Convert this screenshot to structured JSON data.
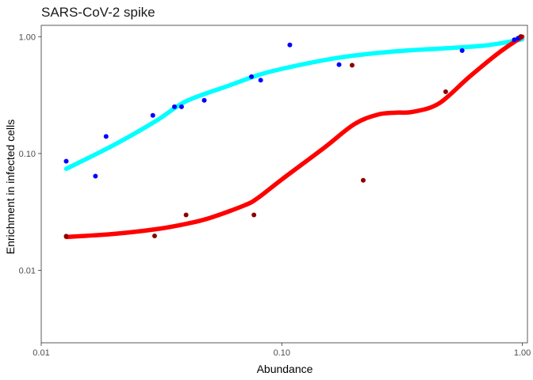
{
  "chart_data": {
    "type": "scatter",
    "title": "SARS-CoV-2 spike",
    "xlabel": "Abundance",
    "ylabel": "Enrichment in infected cells",
    "xscale": "log10",
    "yscale": "log10",
    "xlim": [
      0.01,
      1.05
    ],
    "ylim": [
      0.0024,
      1.25
    ],
    "xticks": [
      0.01,
      0.1,
      1
    ],
    "xtick_labels": [
      "0.01",
      "0.10",
      "1.00"
    ],
    "yticks": [
      0.01,
      0.1,
      1
    ],
    "ytick_labels": [
      "0.01",
      "0.10",
      "1.00"
    ],
    "grid": false,
    "legend": "none",
    "series": [
      {
        "color": "#0000ff",
        "points": [
          [
            0.0127,
            0.086
          ],
          [
            0.0168,
            0.064
          ],
          [
            0.0186,
            0.14
          ],
          [
            0.0291,
            0.212
          ],
          [
            0.0358,
            0.251
          ],
          [
            0.0383,
            0.251
          ],
          [
            0.0476,
            0.285
          ],
          [
            0.0748,
            0.454
          ],
          [
            0.0817,
            0.424
          ],
          [
            0.108,
            0.85
          ],
          [
            0.173,
            0.576
          ],
          [
            0.562,
            0.76
          ],
          [
            0.926,
            0.94
          ],
          [
            0.96,
            0.97
          ],
          [
            0.985,
            1.0
          ]
        ],
        "smooth_color": "#00ffff",
        "smooth": [
          [
            0.0127,
            0.074
          ],
          [
            0.02,
            0.118
          ],
          [
            0.03,
            0.19
          ],
          [
            0.04,
            0.28
          ],
          [
            0.06,
            0.38
          ],
          [
            0.08,
            0.47
          ],
          [
            0.1,
            0.53
          ],
          [
            0.15,
            0.63
          ],
          [
            0.2,
            0.69
          ],
          [
            0.3,
            0.75
          ],
          [
            0.5,
            0.8
          ],
          [
            0.7,
            0.84
          ],
          [
            0.9,
            0.91
          ],
          [
            1.0,
            0.95
          ]
        ]
      },
      {
        "color": "#8b0000",
        "points": [
          [
            0.0127,
            0.0196
          ],
          [
            0.0296,
            0.0197
          ],
          [
            0.04,
            0.0298
          ],
          [
            0.0766,
            0.0298
          ],
          [
            0.196,
            0.57
          ],
          [
            0.218,
            0.059
          ],
          [
            0.48,
            0.338
          ],
          [
            0.985,
            1.0
          ]
        ],
        "smooth_color": "#ff0000",
        "smooth": [
          [
            0.0127,
            0.0193
          ],
          [
            0.02,
            0.0205
          ],
          [
            0.03,
            0.0225
          ],
          [
            0.04,
            0.025
          ],
          [
            0.05,
            0.028
          ],
          [
            0.07,
            0.036
          ],
          [
            0.08,
            0.042
          ],
          [
            0.1,
            0.06
          ],
          [
            0.15,
            0.112
          ],
          [
            0.2,
            0.178
          ],
          [
            0.25,
            0.215
          ],
          [
            0.3,
            0.224
          ],
          [
            0.35,
            0.227
          ],
          [
            0.45,
            0.268
          ],
          [
            0.6,
            0.45
          ],
          [
            0.8,
            0.73
          ],
          [
            1.0,
            1.0
          ]
        ]
      }
    ]
  }
}
